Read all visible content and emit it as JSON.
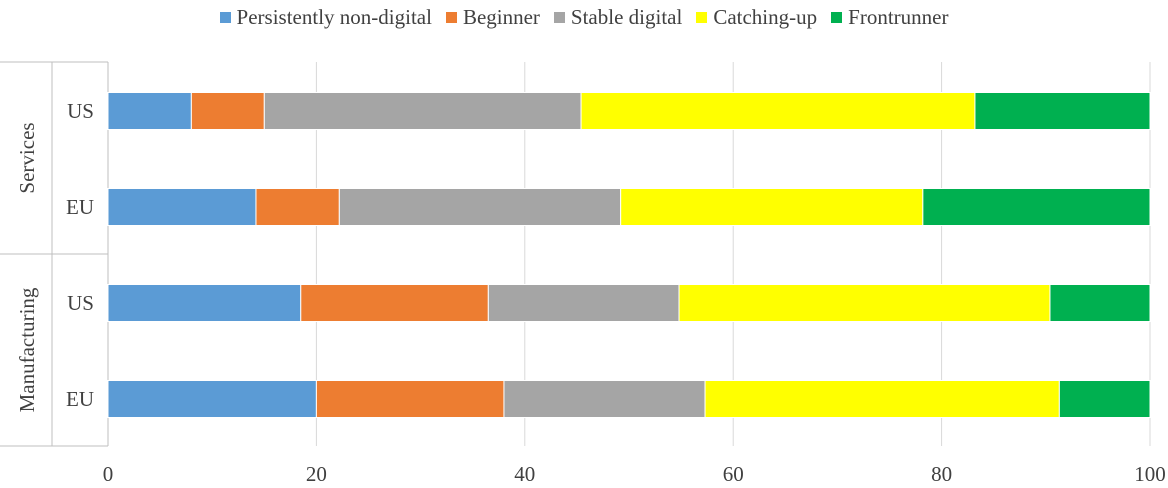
{
  "chart_data": {
    "type": "bar",
    "orientation": "horizontal",
    "stacked": true,
    "title": "",
    "xlabel": "",
    "ylabel": "",
    "xlim": [
      0,
      100
    ],
    "x_ticks": [
      "0",
      "20",
      "40",
      "60",
      "80",
      "100"
    ],
    "grid": true,
    "legend_position": "top",
    "groups": [
      {
        "label": "Services",
        "categories": [
          "US",
          "EU"
        ]
      },
      {
        "label": "Manufacturing",
        "categories": [
          "US",
          "EU"
        ]
      }
    ],
    "series": [
      {
        "name": "Persistently non-digital",
        "color": "#5B9BD5",
        "values": [
          8,
          14.2,
          18.5,
          20
        ]
      },
      {
        "name": "Beginner",
        "color": "#ED7D31",
        "values": [
          7,
          8,
          18,
          18
        ]
      },
      {
        "name": "Stable digital",
        "color": "#A5A5A5",
        "values": [
          30.4,
          27,
          18.3,
          19.3
        ]
      },
      {
        "name": "Catching-up",
        "color": "#FFFF00",
        "values": [
          37.8,
          29,
          35.6,
          34
        ]
      },
      {
        "name": "Frontrunner",
        "color": "#00B050",
        "values": [
          16.8,
          21.8,
          9.6,
          8.7
        ]
      }
    ]
  }
}
